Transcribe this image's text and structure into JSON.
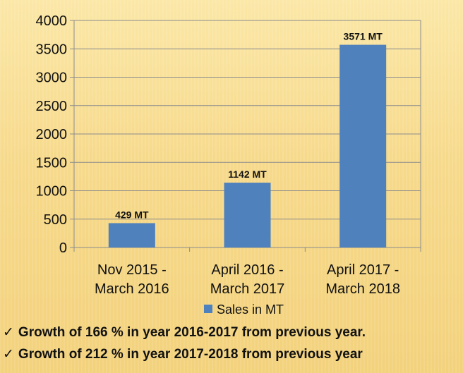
{
  "chart_data": {
    "type": "bar",
    "categories": [
      [
        "Nov 2015 -",
        "March 2016"
      ],
      [
        "April 2016 -",
        "March 2017"
      ],
      [
        "April 2017 -",
        "March 2018"
      ]
    ],
    "series": [
      {
        "name": "Sales in MT",
        "values": [
          429,
          1142,
          3571
        ],
        "color": "#4f81bd"
      }
    ],
    "data_labels": [
      "429 MT",
      "1142 MT",
      "3571 MT"
    ],
    "ylim": [
      0,
      4000
    ],
    "yticks": [
      0,
      500,
      1000,
      1500,
      2000,
      2500,
      3000,
      3500,
      4000
    ],
    "grid": true,
    "legend": "bottom"
  },
  "bullets": [
    {
      "icon": "check-mark-icon",
      "text": "Growth of 166 % in year 2016-2017 from previous year."
    },
    {
      "icon": "check-mark-icon",
      "text": "Growth of 212 % in year 2017-2018 from previous year"
    }
  ]
}
